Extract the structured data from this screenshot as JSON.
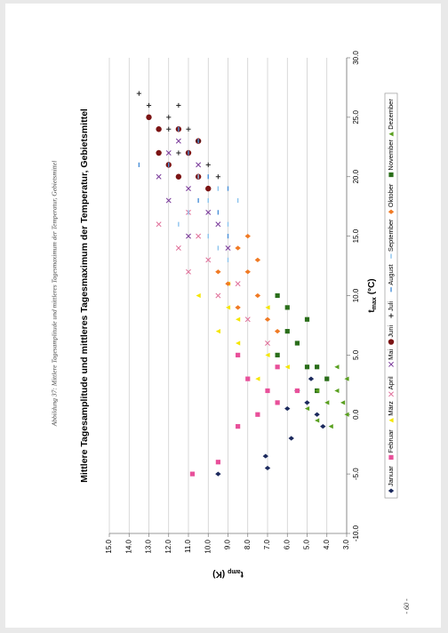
{
  "caption": "Abbildung 37: Mittlere Tagesamplitude und mittleres Tagesmaximum der Temperatur, Gebietsmittel",
  "page_number": "- 60 -",
  "chart_data": {
    "type": "scatter",
    "title": "Mittlere Tagesamplitude und mittleres Tagesmaximum der Temperatur, Gebietsmittel",
    "x_label": {
      "symbol": "t",
      "subscript": "max",
      "unit": "(°C)"
    },
    "y_label": {
      "symbol": "t",
      "subscript": "amp",
      "unit": "(K)"
    },
    "xlim": [
      -10,
      30
    ],
    "xticks": [
      {
        "value": -10,
        "label": "-10.0"
      },
      {
        "value": -5,
        "label": "-5.0"
      },
      {
        "value": 0,
        "label": "0.0"
      },
      {
        "value": 5,
        "label": "5.0"
      },
      {
        "value": 10,
        "label": "10.0"
      },
      {
        "value": 15,
        "label": "15.0"
      },
      {
        "value": 20,
        "label": "20.0"
      },
      {
        "value": 25,
        "label": "25.0"
      },
      {
        "value": 30,
        "label": "30.0"
      }
    ],
    "ylim": [
      3,
      15
    ],
    "yticks": [
      {
        "value": 3,
        "label": "3.0"
      },
      {
        "value": 4,
        "label": "4.0"
      },
      {
        "value": 5,
        "label": "5.0"
      },
      {
        "value": 6,
        "label": "6.0"
      },
      {
        "value": 7,
        "label": "7.0"
      },
      {
        "value": 8,
        "label": "8.0"
      },
      {
        "value": 9,
        "label": "9.0"
      },
      {
        "value": 10,
        "label": "10.0"
      },
      {
        "value": 11,
        "label": "11.0"
      },
      {
        "value": 12,
        "label": "12.0"
      },
      {
        "value": 13,
        "label": "13.0"
      },
      {
        "value": 14,
        "label": "14.0"
      },
      {
        "value": 15,
        "label": "15.0"
      }
    ],
    "grid": true,
    "legend": "bottom",
    "series": [
      {
        "name": "Januar",
        "color": "#1c2a5e",
        "marker": "diamond",
        "x": [
          -4.5,
          -3.5,
          -2,
          0,
          1,
          2,
          -1,
          3,
          -5,
          0.5
        ],
        "y": [
          7.0,
          7.1,
          5.8,
          4.5,
          5.0,
          5.5,
          4.2,
          4.8,
          9.5,
          6.0
        ]
      },
      {
        "name": "Februar",
        "color": "#e8509a",
        "marker": "square",
        "x": [
          -5,
          -4,
          -1,
          0,
          1,
          2,
          4,
          3,
          5,
          2
        ],
        "y": [
          10.8,
          9.5,
          8.5,
          7.5,
          6.5,
          7.0,
          6.5,
          8.0,
          8.5,
          5.5
        ]
      },
      {
        "name": "März",
        "color": "#f5e600",
        "marker": "triangle",
        "x": [
          3,
          5,
          6,
          8,
          9,
          10,
          7,
          11,
          4,
          9
        ],
        "y": [
          7.5,
          7.0,
          8.5,
          8.5,
          9.0,
          10.5,
          9.5,
          9.0,
          6.0,
          7.0
        ]
      },
      {
        "name": "April",
        "color": "#e0709a",
        "marker": "x",
        "x": [
          12,
          14,
          16,
          10,
          13,
          8,
          17,
          11,
          15,
          6
        ],
        "y": [
          11.0,
          11.5,
          12.5,
          9.5,
          10.0,
          8.0,
          11.0,
          8.5,
          10.5,
          7.0
        ]
      },
      {
        "name": "Mai",
        "color": "#7a3a9a",
        "marker": "x",
        "x": [
          15,
          18,
          20,
          22,
          17,
          19,
          21,
          16,
          23,
          14
        ],
        "y": [
          11.0,
          12.0,
          12.5,
          12.0,
          10.0,
          11.0,
          10.5,
          9.5,
          11.5,
          9.0
        ]
      },
      {
        "name": "Juni",
        "color": "#7b1414",
        "marker": "circle",
        "x": [
          20,
          22,
          24,
          25,
          21,
          23,
          20,
          19,
          22,
          24
        ],
        "y": [
          10.5,
          11.0,
          12.5,
          13.0,
          12.0,
          10.5,
          11.5,
          10.0,
          12.5,
          11.5
        ]
      },
      {
        "name": "Juli",
        "color": "#222222",
        "marker": "plus",
        "x": [
          22,
          24,
          26,
          27,
          25,
          23,
          21,
          24,
          20,
          26
        ],
        "y": [
          11.5,
          12.0,
          13.0,
          13.5,
          12.0,
          10.5,
          10.0,
          11.0,
          9.5,
          11.5
        ]
      },
      {
        "name": "August",
        "color": "#4a90d8",
        "marker": "dash",
        "x": [
          15,
          17,
          20,
          22,
          24,
          18,
          21,
          19,
          23,
          21
        ],
        "y": [
          9.0,
          9.5,
          10.0,
          11.0,
          11.5,
          10.5,
          12.0,
          9.0,
          10.5,
          13.5
        ]
      },
      {
        "name": "September",
        "color": "#8cc4ee",
        "marker": "dash",
        "x": [
          14,
          16,
          18,
          17,
          19,
          15,
          20,
          16,
          13,
          18
        ],
        "y": [
          9.5,
          9.0,
          10.0,
          11.0,
          9.5,
          10.0,
          10.5,
          11.5,
          9.0,
          8.5
        ]
      },
      {
        "name": "Oktober",
        "color": "#f07a24",
        "marker": "diamond",
        "x": [
          8,
          10,
          12,
          14,
          11,
          13,
          9,
          15,
          12,
          7
        ],
        "y": [
          7.0,
          7.5,
          8.0,
          8.5,
          9.0,
          7.5,
          8.5,
          8.0,
          9.5,
          6.5
        ]
      },
      {
        "name": "November",
        "color": "#2a6e1a",
        "marker": "square",
        "x": [
          2,
          4,
          6,
          7,
          5,
          3,
          8,
          9,
          4,
          10
        ],
        "y": [
          4.5,
          5.0,
          5.5,
          6.0,
          6.5,
          4.0,
          5.0,
          6.0,
          4.5,
          6.5
        ]
      },
      {
        "name": "Dezember",
        "color": "#5aa020",
        "marker": "triangle",
        "x": [
          0,
          1,
          2,
          3,
          -1,
          0.5,
          2,
          4,
          1,
          -0.5
        ],
        "y": [
          3.0,
          4.0,
          3.5,
          3.0,
          3.8,
          5.0,
          4.5,
          3.5,
          3.2,
          4.5
        ]
      }
    ]
  }
}
